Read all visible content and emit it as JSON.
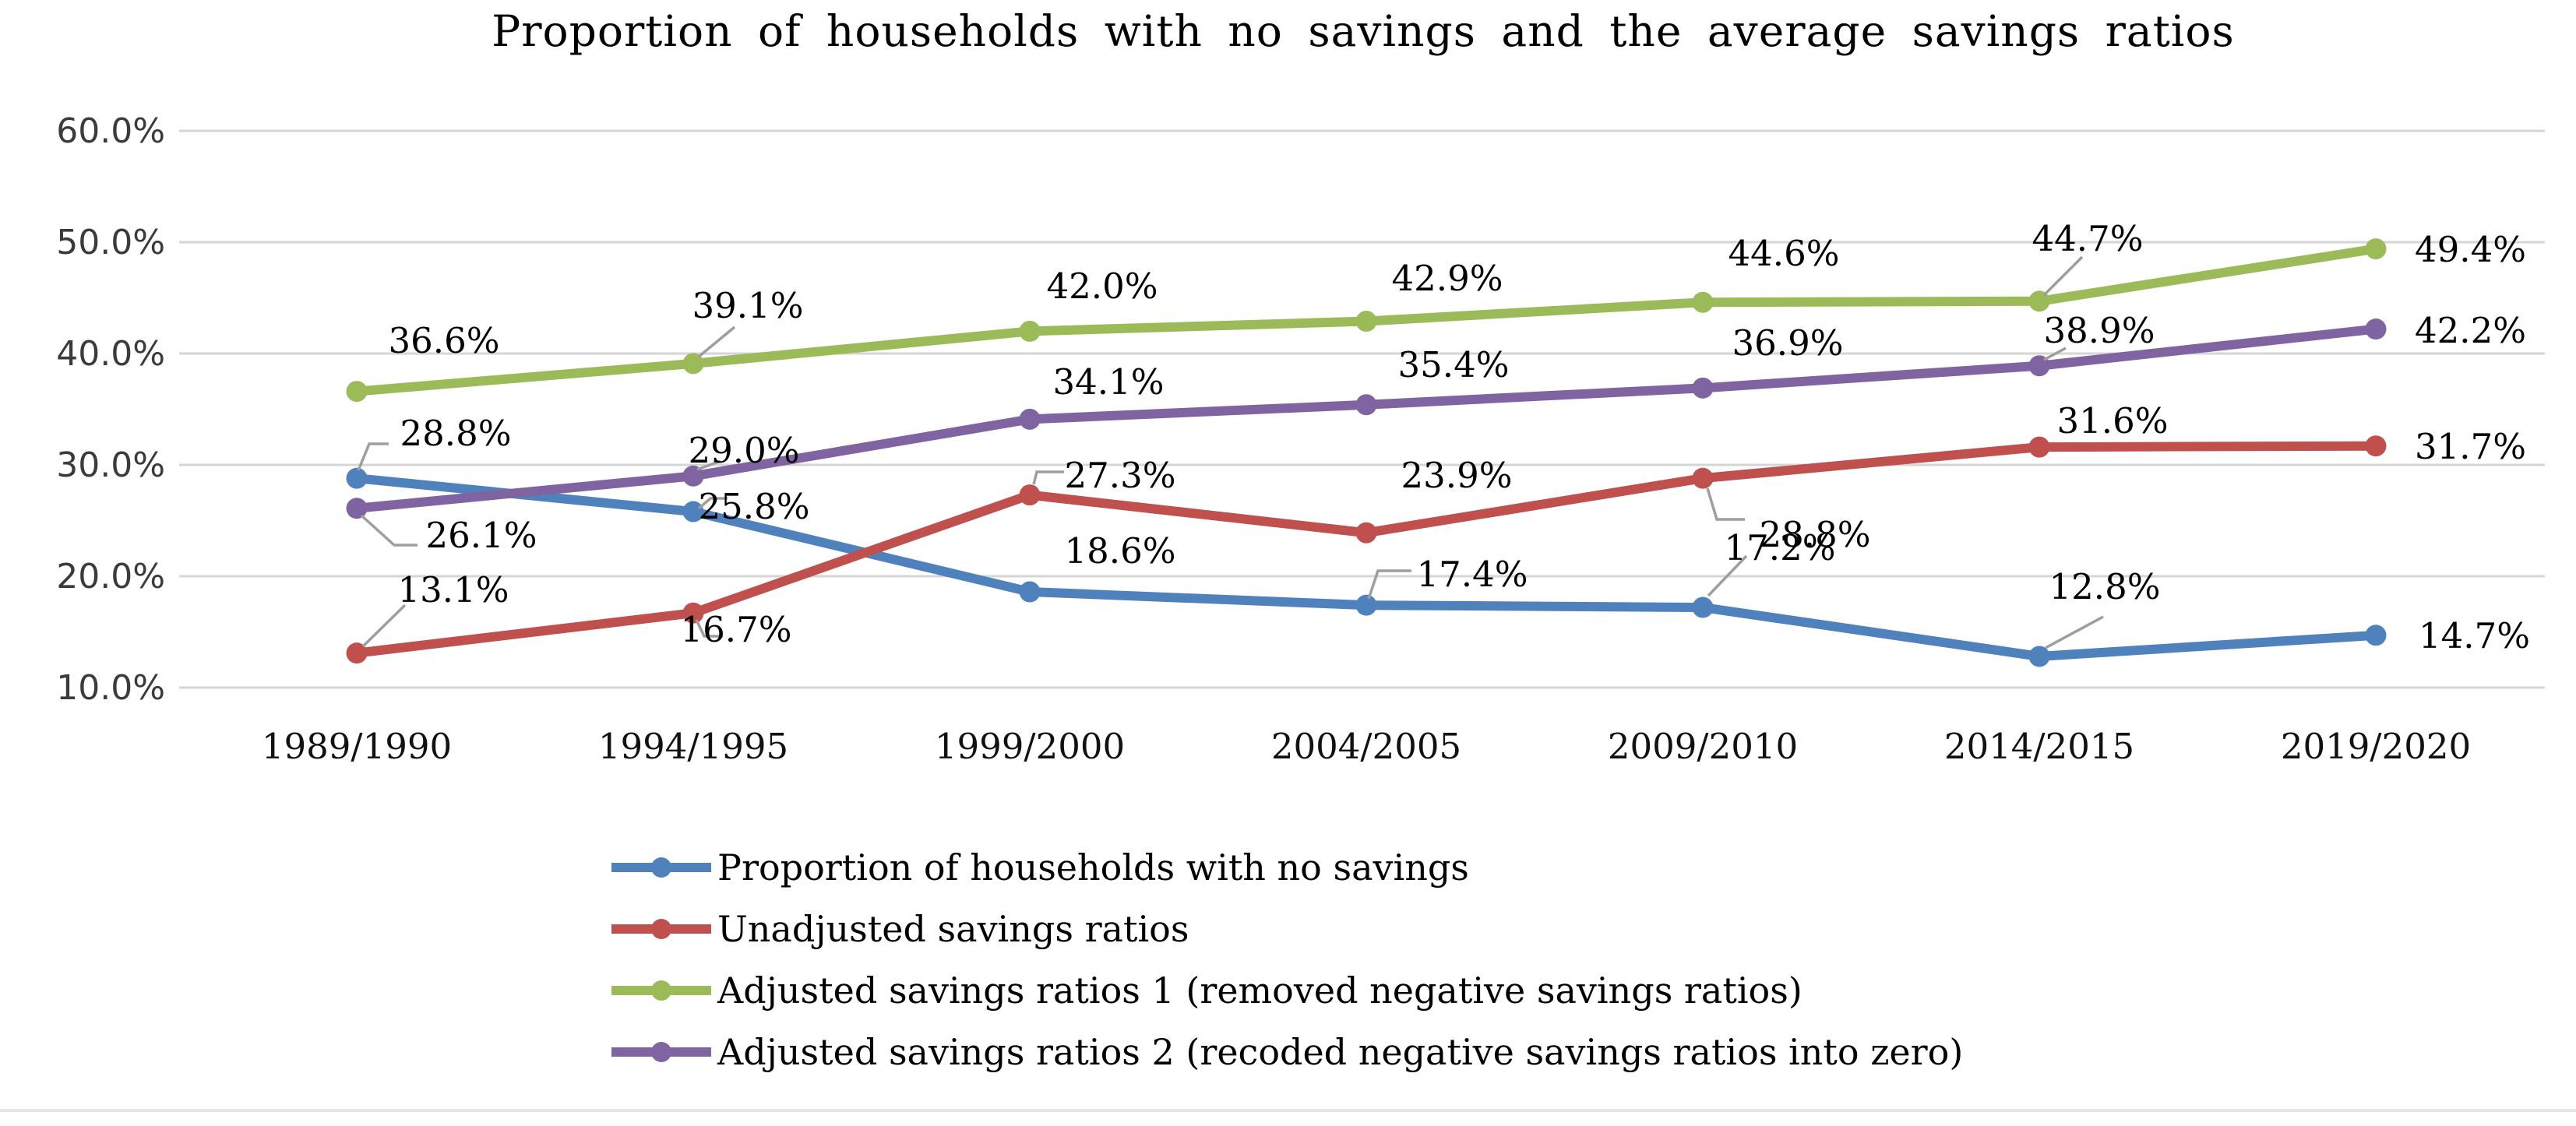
{
  "chart_data": {
    "type": "line",
    "title": "Proportion of households with no savings and the average savings ratios",
    "categories": [
      "1989/1990",
      "1994/1995",
      "1999/2000",
      "2004/2005",
      "2009/2010",
      "2014/2015",
      "2019/2020"
    ],
    "y_ticks": [
      "60.0%",
      "50.0%",
      "40.0%",
      "30.0%",
      "20.0%",
      "10.0%"
    ],
    "ylim": [
      10,
      60
    ],
    "y_major_unit": 10,
    "grid": true,
    "legend_position": "bottom-left",
    "colors": {
      "gridline": "#d6d6d6",
      "leader_line": "#9e9e9e",
      "axis_text": "#3b3b3b",
      "label_text": "#000000"
    },
    "series": [
      {
        "name": "Proportion of households with no savings",
        "color": "#4F81BD",
        "values": [
          28.8,
          25.8,
          18.6,
          17.4,
          17.2,
          12.8,
          14.7
        ],
        "labels": [
          "28.8%",
          "25.8%",
          "18.6%",
          "17.4%",
          "17.2%",
          "12.8%",
          "14.7%"
        ]
      },
      {
        "name": "Unadjusted savings ratios",
        "color": "#C0504D",
        "values": [
          13.1,
          16.7,
          27.3,
          23.9,
          28.8,
          31.6,
          31.7
        ],
        "labels": [
          "13.1%",
          "16.7%",
          "27.3%",
          "23.9%",
          "28.8%",
          "31.6%",
          "31.7%"
        ]
      },
      {
        "name": "Adjusted savings ratios 1 (removed negative savings ratios)",
        "color": "#9BBB59",
        "values": [
          36.6,
          39.1,
          42.0,
          42.9,
          44.6,
          44.7,
          49.4
        ],
        "labels": [
          "36.6%",
          "39.1%",
          "42.0%",
          "42.9%",
          "44.6%",
          "44.7%",
          "49.4%"
        ]
      },
      {
        "name": "Adjusted savings ratios 2 (recoded negative savings ratios into zero)",
        "color": "#8064A2",
        "values": [
          26.1,
          29.0,
          34.1,
          35.4,
          36.9,
          38.9,
          42.2
        ],
        "labels": [
          "26.1%",
          "29.0%",
          "34.1%",
          "35.4%",
          "36.9%",
          "38.9%",
          "42.2%"
        ]
      }
    ]
  }
}
